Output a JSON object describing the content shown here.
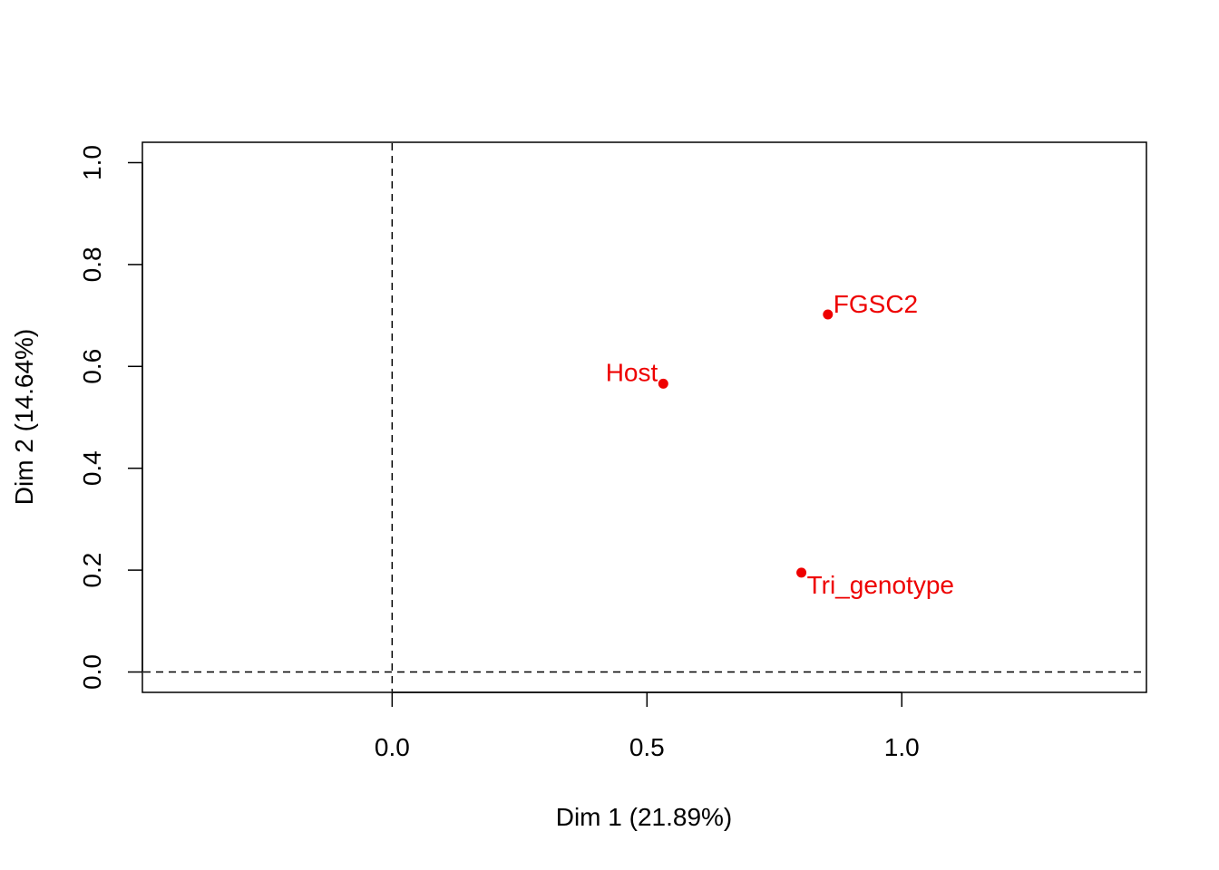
{
  "chart_data": {
    "type": "scatter",
    "title": "",
    "xlabel": "Dim 1 (21.89%)",
    "ylabel": "Dim 2 (14.64%)",
    "xlim": [
      -0.49,
      1.48
    ],
    "ylim": [
      -0.04,
      1.04
    ],
    "xticks": [
      0.0,
      0.5,
      1.0
    ],
    "xtick_labels": [
      "0.0",
      "0.5",
      "1.0"
    ],
    "yticks": [
      0.0,
      0.2,
      0.4,
      0.6,
      0.8,
      1.0
    ],
    "ytick_labels": [
      "0.0",
      "0.2",
      "0.4",
      "0.6",
      "0.8",
      "1.0"
    ],
    "reference_lines": {
      "x": 0,
      "y": 0,
      "style": "dashed"
    },
    "point_color": "#ee0000",
    "points": [
      {
        "label": "Host",
        "x": 0.532,
        "y": 0.566,
        "label_pos": "left"
      },
      {
        "label": "FGSC2",
        "x": 0.855,
        "y": 0.702,
        "label_pos": "right"
      },
      {
        "label": "Tri_genotype",
        "x": 0.803,
        "y": 0.195,
        "label_pos": "right"
      }
    ]
  }
}
